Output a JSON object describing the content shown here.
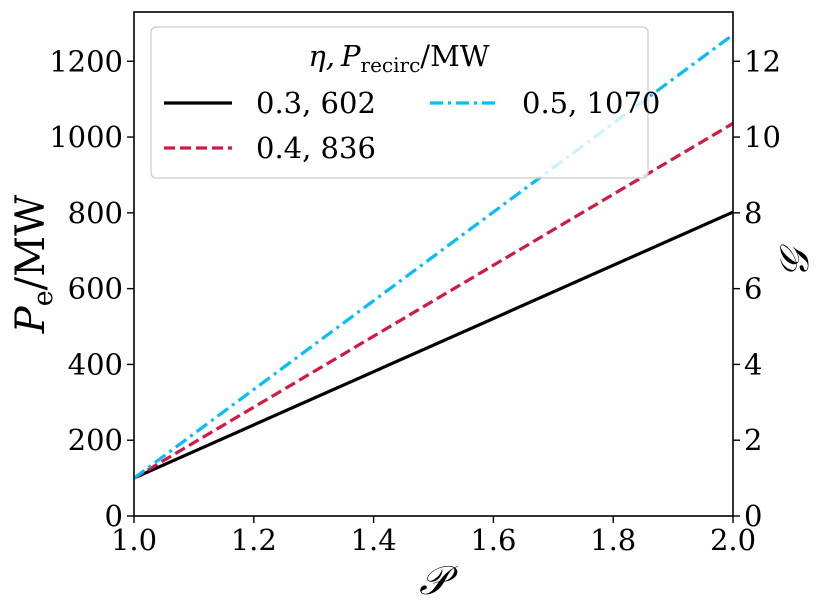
{
  "chart_data": {
    "type": "line",
    "x": [
      1.0,
      2.0
    ],
    "xlim": [
      1.0,
      2.0
    ],
    "xticks": [
      "1.0",
      "1.2",
      "1.4",
      "1.6",
      "1.8",
      "2.0"
    ],
    "xtick_values": [
      1.0,
      1.2,
      1.4,
      1.6,
      1.8,
      2.0
    ],
    "xlabel": "𝒫",
    "ylim": [
      0,
      1330
    ],
    "yticks": [
      "0",
      "200",
      "400",
      "600",
      "800",
      "1000",
      "1200"
    ],
    "ytick_values": [
      0,
      200,
      400,
      600,
      800,
      1000,
      1200
    ],
    "ylabel": {
      "main": "P",
      "sub": "e",
      "rest": "/MW"
    },
    "y2lim": [
      0,
      13.3
    ],
    "y2ticks": [
      "0",
      "2",
      "4",
      "6",
      "8",
      "10",
      "12"
    ],
    "y2tick_values": [
      0,
      2,
      4,
      6,
      8,
      10,
      12
    ],
    "y2label": "𝒢",
    "legend": {
      "title": {
        "eta": "η,",
        "p": "P",
        "sub": "recirc",
        "rest": "/MW"
      },
      "placement": "top-left"
    },
    "series": [
      {
        "name": "0.3, 602",
        "values": [
          100,
          802
        ],
        "color": "#000000",
        "dash": "solid"
      },
      {
        "name": "0.4, 836",
        "values": [
          100,
          1036
        ],
        "color": "#d6173f",
        "dash": "dashed"
      },
      {
        "name": "0.5, 1070",
        "values": [
          100,
          1270
        ],
        "color": "#00bfff",
        "dash": "dashdot"
      }
    ]
  }
}
